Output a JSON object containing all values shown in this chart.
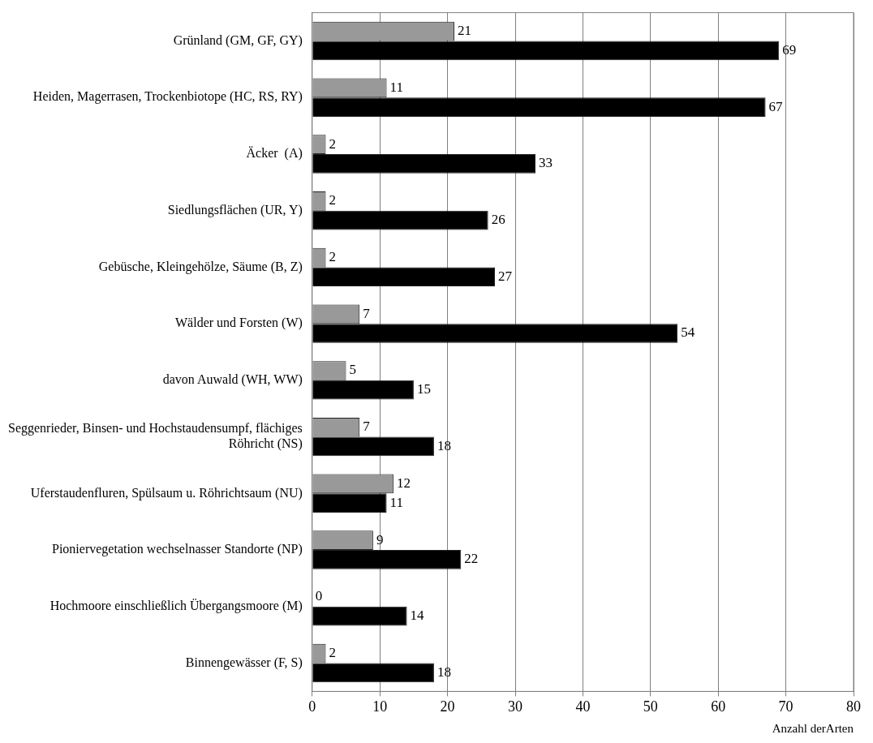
{
  "chart_data": {
    "type": "bar",
    "orientation": "horizontal",
    "xlabel": "Anzahl derArten",
    "categories": [
      "Grünland (GM, GF, GY)",
      "Heiden, Magerrasen, Trockenbiotope (HC, RS, RY)",
      "Äcker  (A)",
      "Siedlungsflächen (UR, Y)",
      "Gebüsche, Kleingehölze, Säume (B, Z)",
      "Wälder und Forsten (W)",
      "davon Auwald (WH, WW)",
      "Seggenrieder, Binsen- und Hochstaudensumpf, flächiges Röhricht (NS)",
      "Uferstaudenfluren, Spülsaum u. Röhrichtsaum (NU)",
      "Pioniervegetation wechselnasser Standorte (NP)",
      "Hochmoore einschließlich Übergangsmoore (M)",
      "Binnengewässer (F, S)"
    ],
    "series": [
      {
        "color": "#999999",
        "values": [
          21,
          11,
          2,
          2,
          2,
          7,
          5,
          7,
          12,
          9,
          0,
          2
        ]
      },
      {
        "color": "#000000",
        "values": [
          69,
          67,
          33,
          26,
          27,
          54,
          15,
          18,
          11,
          22,
          14,
          18
        ]
      }
    ],
    "xlim": [
      0,
      80
    ],
    "xticks": [
      0,
      10,
      20,
      30,
      40,
      50,
      60,
      70,
      80
    ],
    "grid": "x",
    "data_labels": true
  }
}
